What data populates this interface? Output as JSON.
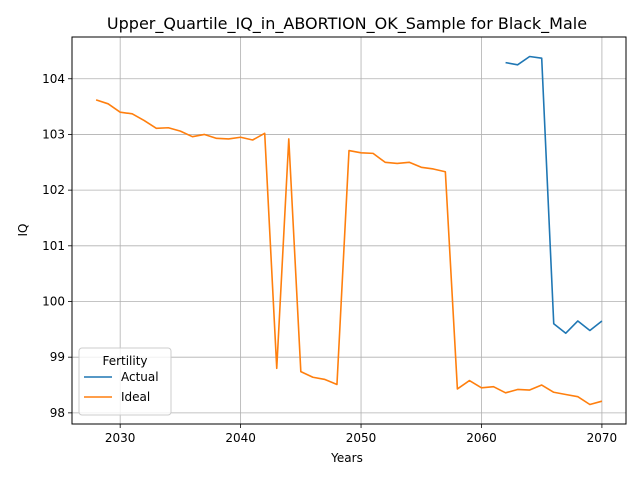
{
  "chart_data": {
    "type": "line",
    "title": "Upper_Quartile_IQ_in_ABORTION_OK_Sample for Black_Male",
    "xlabel": "Years",
    "ylabel": "IQ",
    "xlim": [
      2026,
      2072
    ],
    "ylim": [
      97.8,
      104.75
    ],
    "xticks": [
      2030,
      2040,
      2050,
      2060,
      2070
    ],
    "yticks": [
      98,
      99,
      100,
      101,
      102,
      103,
      104
    ],
    "grid": true,
    "legend": {
      "title": "Fertility",
      "placement": "lower-left"
    },
    "series": [
      {
        "name": "Actual",
        "color": "#1f77b4",
        "x": [
          2062,
          2063,
          2064,
          2065,
          2066,
          2067,
          2068,
          2069,
          2070
        ],
        "y": [
          104.29,
          104.25,
          104.4,
          104.37,
          99.6,
          99.43,
          99.65,
          99.48,
          99.65
        ]
      },
      {
        "name": "Ideal",
        "color": "#ff7f0e",
        "x": [
          2028,
          2029,
          2030,
          2031,
          2032,
          2033,
          2034,
          2035,
          2036,
          2037,
          2038,
          2039,
          2040,
          2041,
          2042,
          2043,
          2044,
          2045,
          2046,
          2047,
          2048,
          2049,
          2050,
          2051,
          2052,
          2053,
          2054,
          2055,
          2056,
          2057,
          2058,
          2059,
          2060,
          2061,
          2062,
          2063,
          2064,
          2065,
          2066,
          2067,
          2068,
          2069,
          2070
        ],
        "y": [
          103.62,
          103.55,
          103.4,
          103.37,
          103.25,
          103.11,
          103.12,
          103.06,
          102.96,
          103.0,
          102.93,
          102.92,
          102.95,
          102.9,
          103.02,
          98.8,
          102.92,
          98.74,
          98.64,
          98.6,
          98.51,
          102.71,
          102.67,
          102.66,
          102.5,
          102.48,
          102.5,
          102.41,
          102.38,
          102.33,
          98.43,
          98.58,
          98.45,
          98.47,
          98.36,
          98.42,
          98.41,
          98.5,
          98.37,
          98.33,
          98.29,
          98.15,
          98.21
        ]
      }
    ]
  }
}
